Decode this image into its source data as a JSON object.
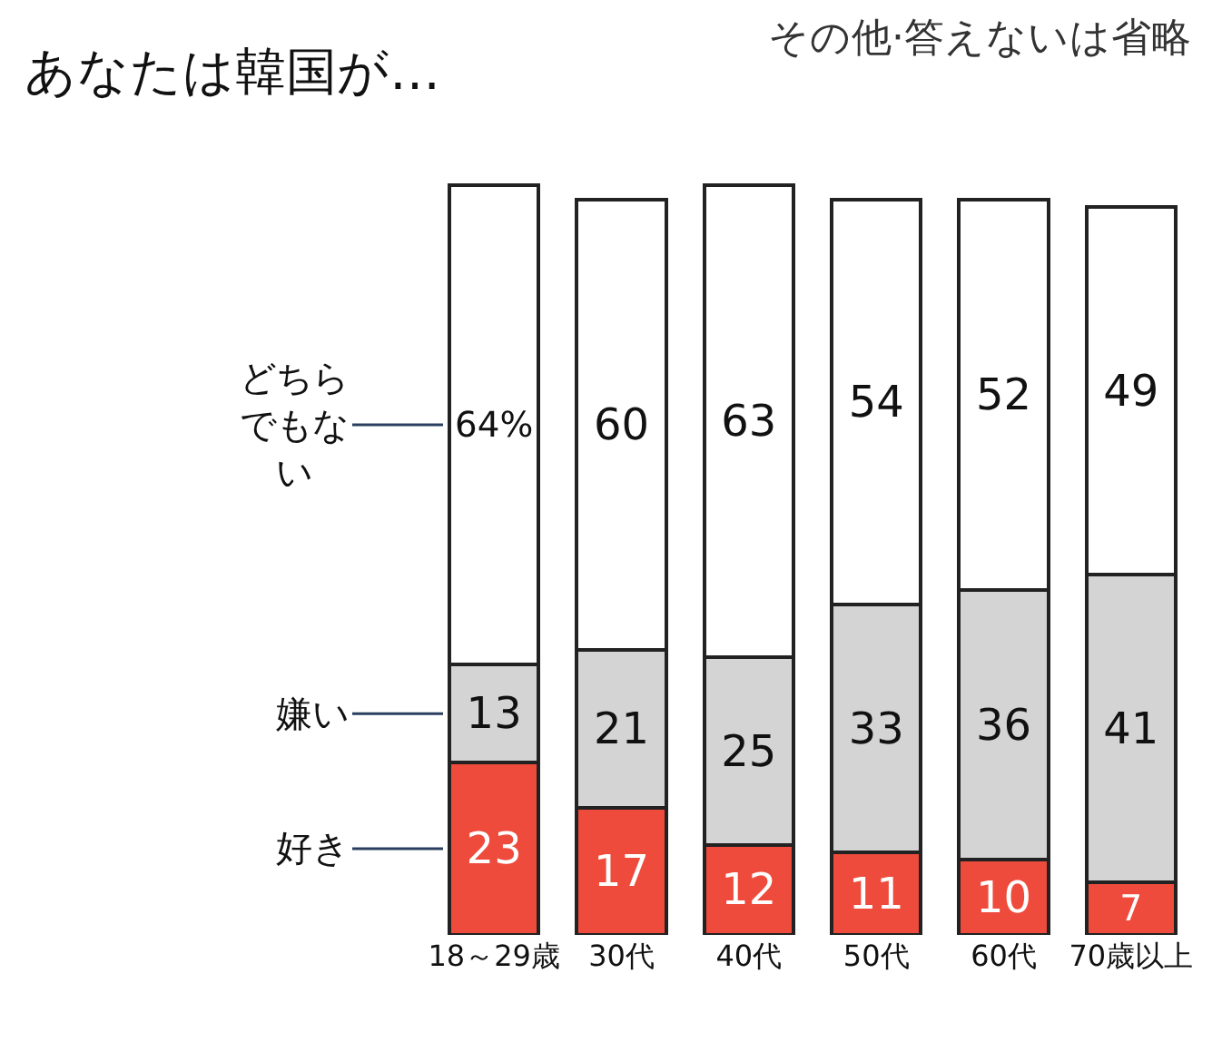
{
  "chart_data": {
    "type": "bar",
    "stacked": true,
    "title": "あなたは韓国が…",
    "subtitle": "その他·答えないは省略",
    "categories": [
      "18～29歳",
      "30代",
      "40代",
      "50代",
      "60代",
      "70歳以上"
    ],
    "series": [
      {
        "name": "好き",
        "color": "#ef4b3c",
        "values": [
          23,
          17,
          12,
          11,
          10,
          7
        ]
      },
      {
        "name": "嫌い",
        "color": "#d4d4d4",
        "values": [
          13,
          21,
          25,
          33,
          36,
          41
        ]
      },
      {
        "name": "どちらでもない",
        "color": "#ffffff",
        "values": [
          64,
          60,
          63,
          54,
          52,
          49
        ],
        "value_labels": [
          "64%",
          "60",
          "63",
          "54",
          "52",
          "49"
        ]
      }
    ],
    "data_labels": true,
    "legend": false
  }
}
